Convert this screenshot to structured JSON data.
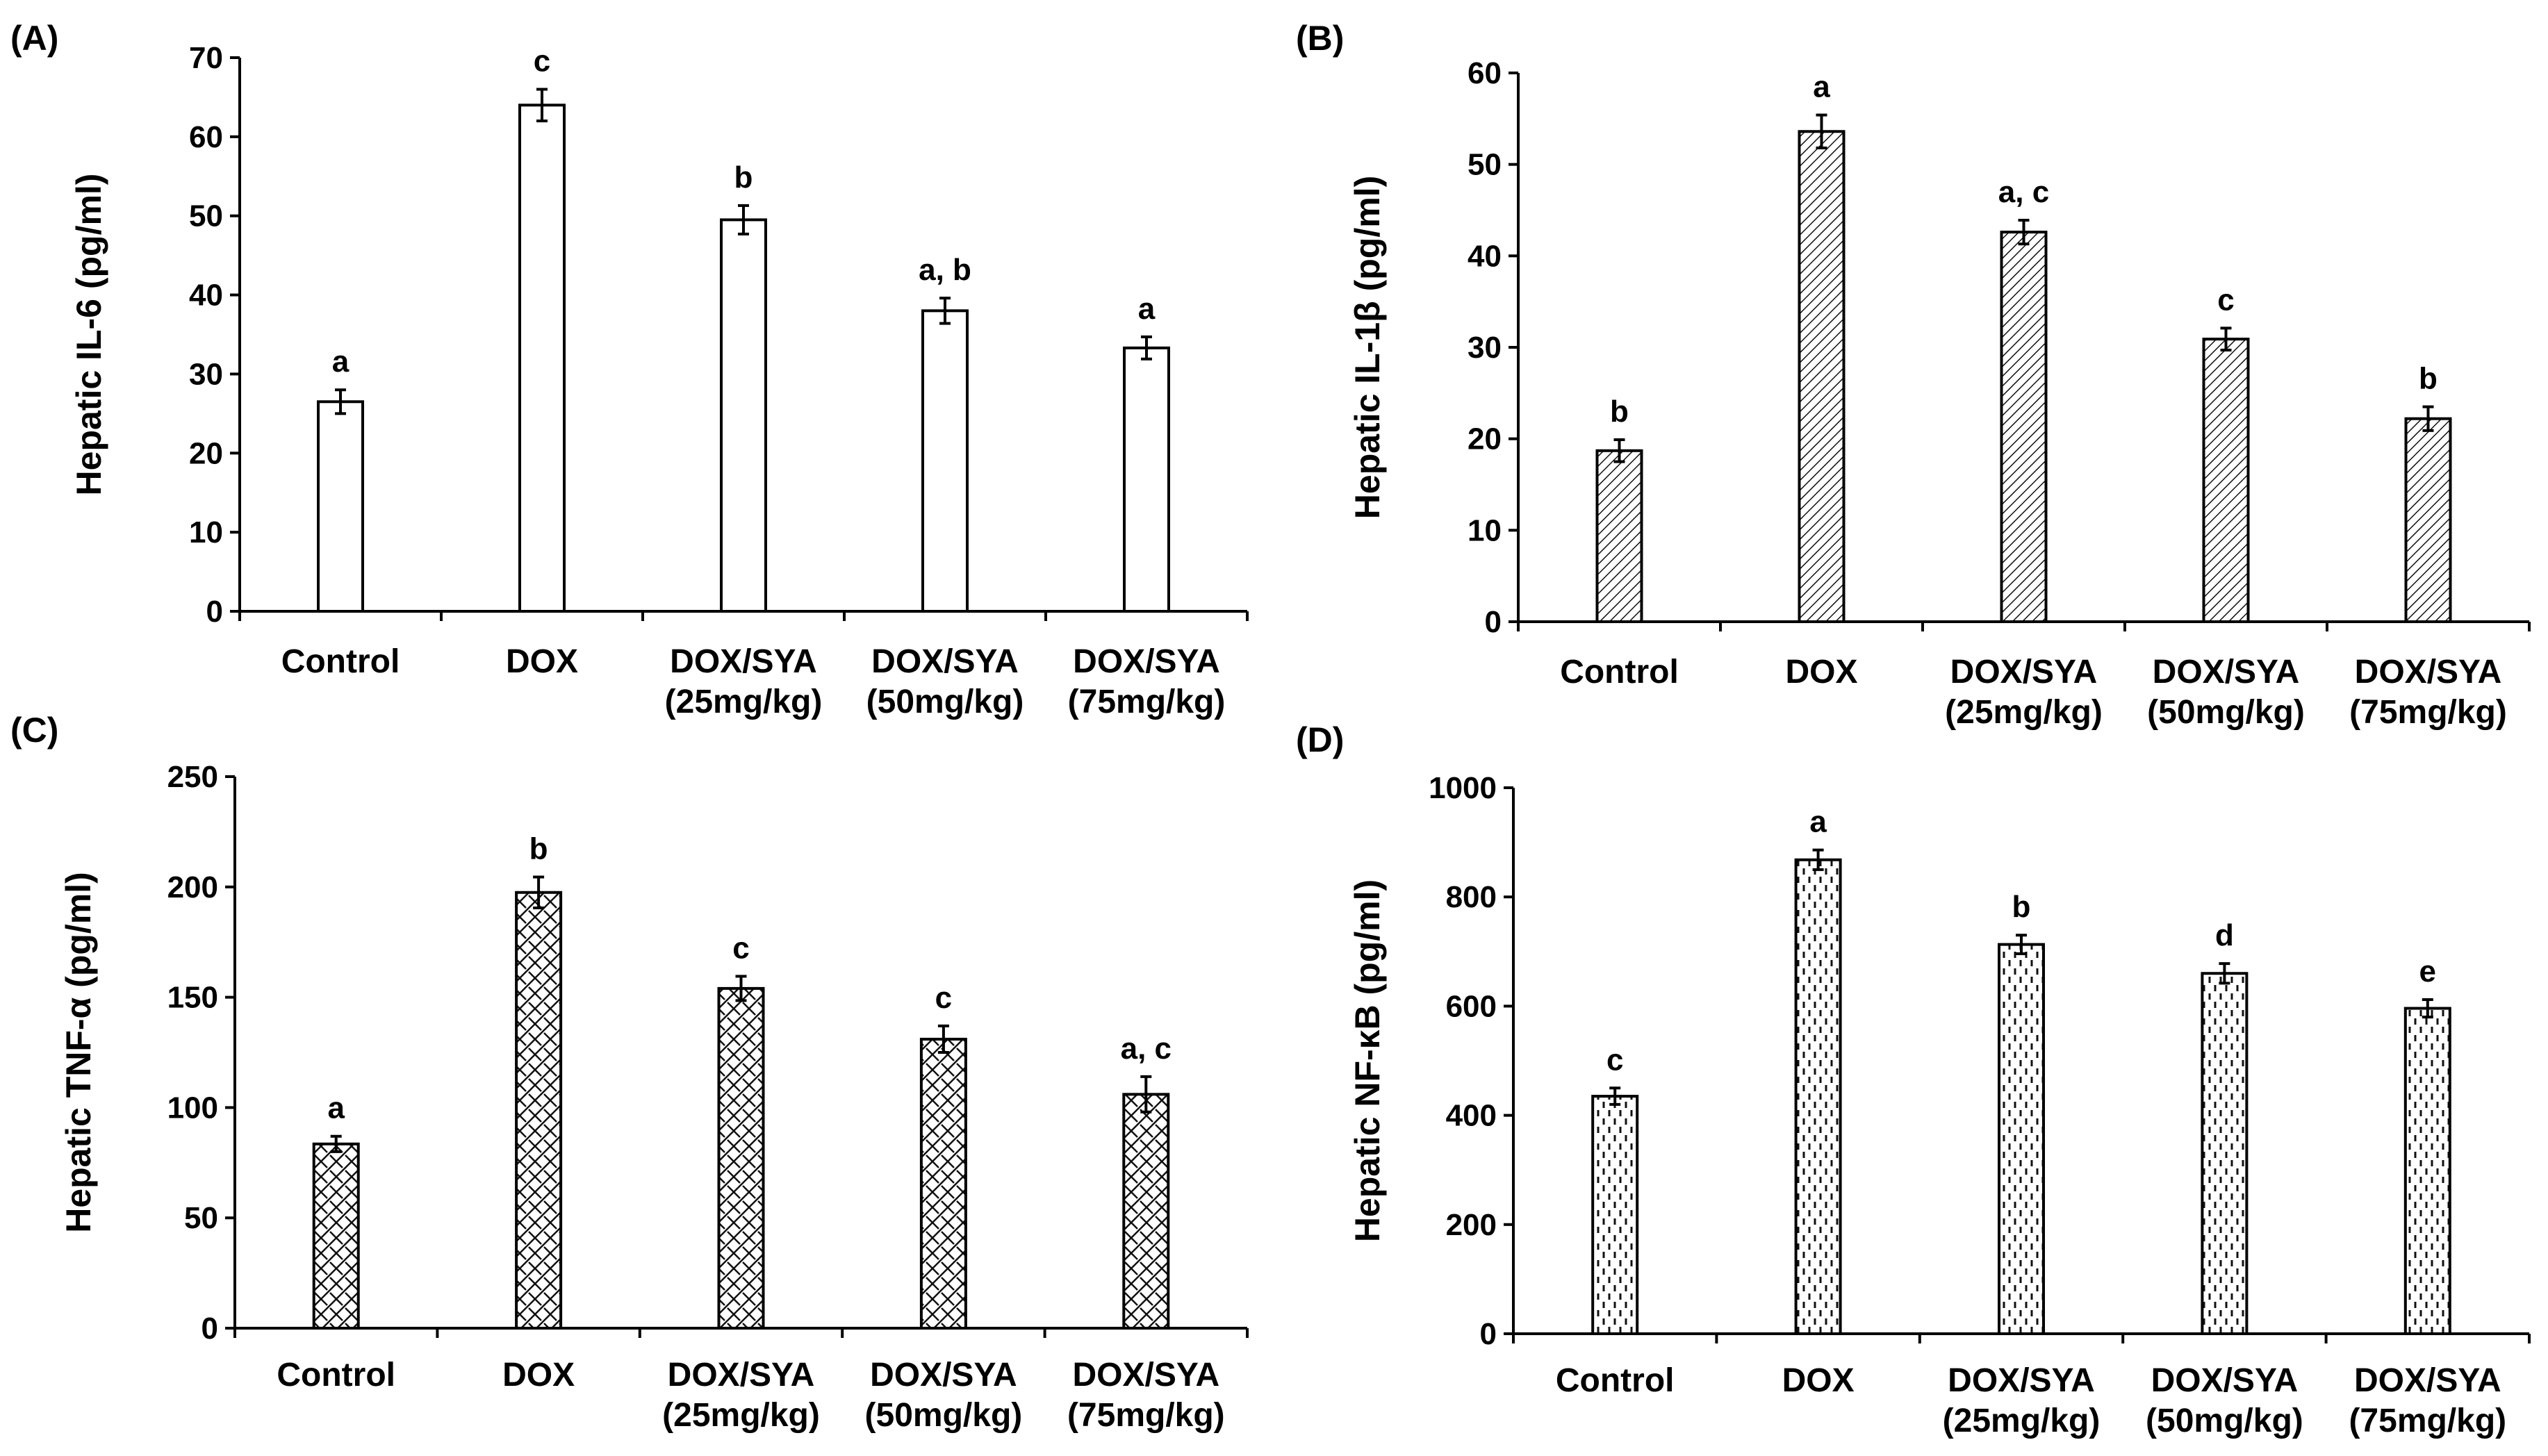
{
  "figure": {
    "panels": [
      "(A)",
      "(B)",
      "(C)",
      "(D)"
    ]
  },
  "chart_data": [
    {
      "type": "bar",
      "panel": "(A)",
      "title": "",
      "xlabel": "",
      "ylabel": "Hepatic IL-6 (pg/ml)",
      "ylim": [
        0,
        70
      ],
      "yticks": [
        0,
        10,
        20,
        30,
        40,
        50,
        60,
        70
      ],
      "categories": [
        [
          "Control"
        ],
        [
          "DOX"
        ],
        [
          "DOX/SYA",
          "(25mg/kg)"
        ],
        [
          "DOX/SYA",
          "(50mg/kg)"
        ],
        [
          "DOX/SYA",
          "(75mg/kg)"
        ]
      ],
      "values": [
        26.5,
        64,
        49.5,
        38,
        33.3
      ],
      "errors": [
        1.5,
        2,
        1.8,
        1.6,
        1.4
      ],
      "significance": [
        "a",
        "c",
        "b",
        "a, b",
        "a"
      ],
      "fill": "white"
    },
    {
      "type": "bar",
      "panel": "(B)",
      "title": "",
      "xlabel": "",
      "ylabel": "Hepatic IL-1β (pg/ml)",
      "ylim": [
        0,
        60
      ],
      "yticks": [
        0,
        10,
        20,
        30,
        40,
        50,
        60
      ],
      "categories": [
        [
          "Control"
        ],
        [
          "DOX"
        ],
        [
          "DOX/SYA",
          "(25mg/kg)"
        ],
        [
          "DOX/SYA",
          "(50mg/kg)"
        ],
        [
          "DOX/SYA",
          "(75mg/kg)"
        ]
      ],
      "values": [
        18.7,
        53.6,
        42.6,
        30.9,
        22.2
      ],
      "errors": [
        1.2,
        1.8,
        1.3,
        1.2,
        1.3
      ],
      "significance": [
        "b",
        "a",
        "a, c",
        "c",
        "b"
      ],
      "fill": "diagonal-hatch"
    },
    {
      "type": "bar",
      "panel": "(C)",
      "title": "",
      "xlabel": "",
      "ylabel": "Hepatic TNF-α (pg/ml)",
      "ylim": [
        0,
        250
      ],
      "yticks": [
        0,
        50,
        100,
        150,
        200,
        250
      ],
      "categories": [
        [
          "Control"
        ],
        [
          "DOX"
        ],
        [
          "DOX/SYA",
          "(25mg/kg)"
        ],
        [
          "DOX/SYA",
          "(50mg/kg)"
        ],
        [
          "DOX/SYA",
          "(75mg/kg)"
        ]
      ],
      "values": [
        83.5,
        197.5,
        154,
        131,
        106
      ],
      "errors": [
        3.5,
        7,
        5.5,
        6,
        8
      ],
      "significance": [
        "a",
        "b",
        "c",
        "c",
        "a, c"
      ],
      "fill": "cross-hatch"
    },
    {
      "type": "bar",
      "panel": "(D)",
      "title": "",
      "xlabel": "",
      "ylabel": "Hepatic NF-κB (pg/ml)",
      "ylim": [
        0,
        1000
      ],
      "yticks": [
        0,
        200,
        400,
        600,
        800,
        1000
      ],
      "categories": [
        [
          "Control"
        ],
        [
          "DOX"
        ],
        [
          "DOX/SYA",
          "(25mg/kg)"
        ],
        [
          "DOX/SYA",
          "(50mg/kg)"
        ],
        [
          "DOX/SYA",
          "(75mg/kg)"
        ]
      ],
      "values": [
        435,
        868,
        713,
        660,
        596
      ],
      "errors": [
        15,
        18,
        17,
        18,
        16
      ],
      "significance": [
        "c",
        "a",
        "b",
        "d",
        "e"
      ],
      "fill": "dash-pattern"
    }
  ]
}
